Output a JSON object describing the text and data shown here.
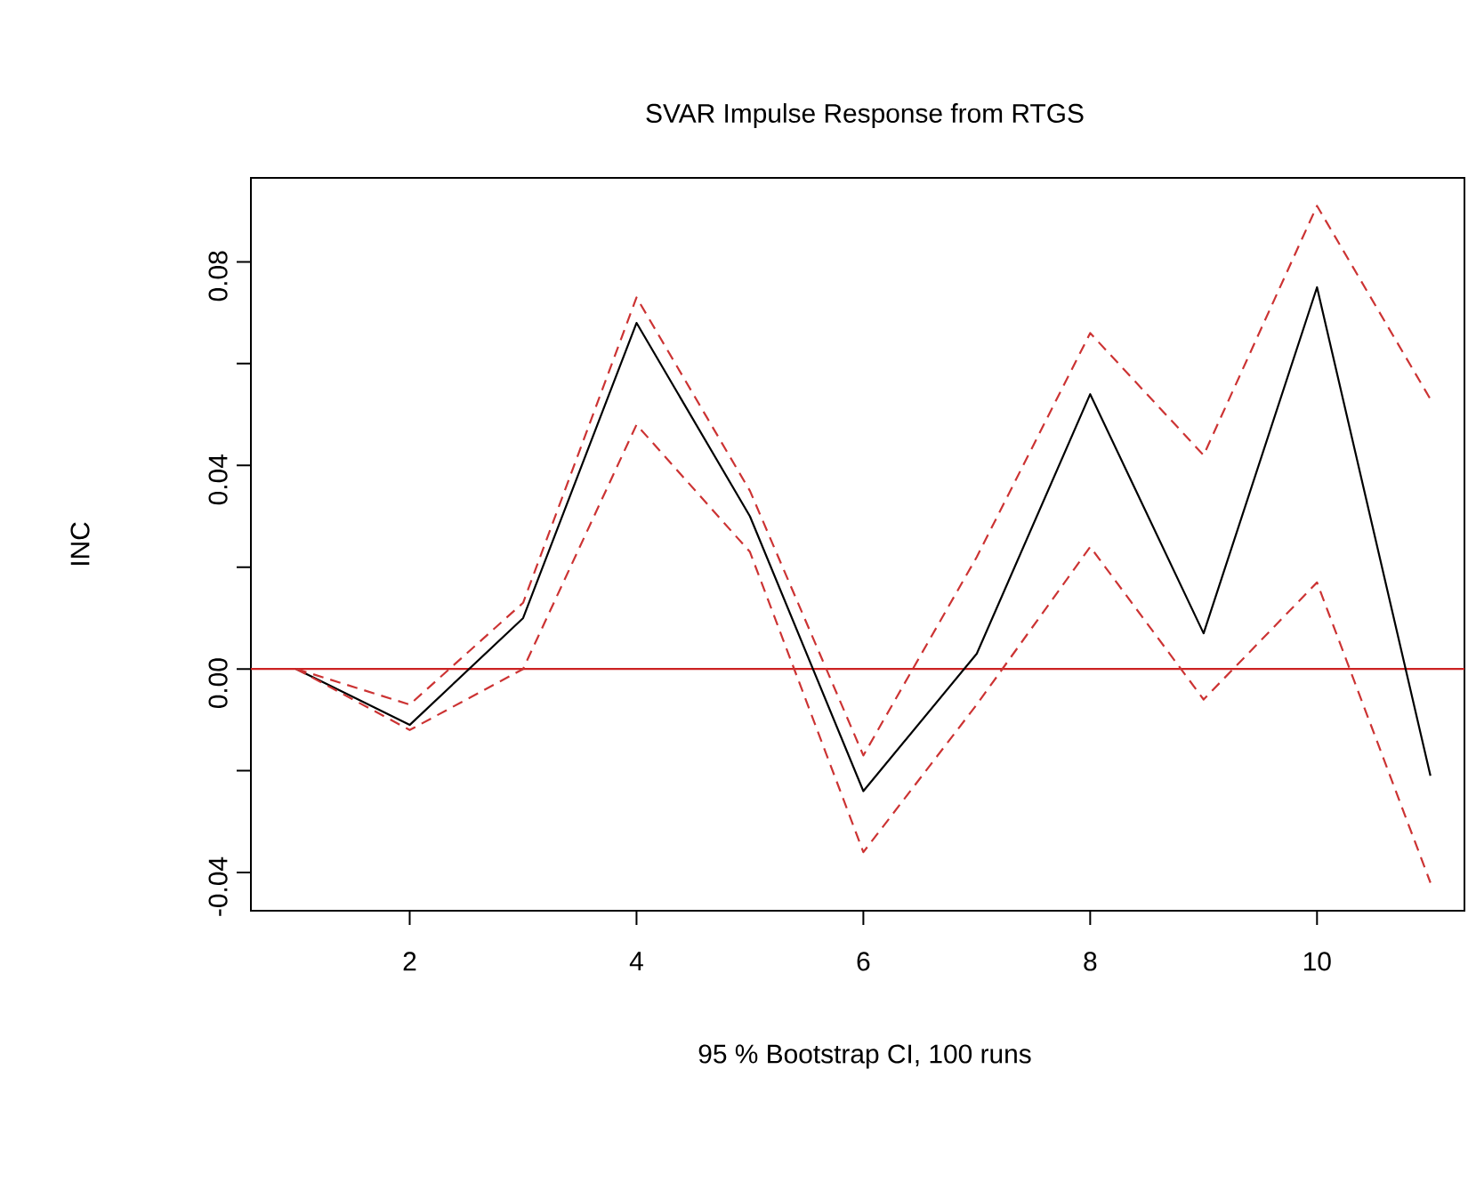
{
  "chart_data": {
    "type": "line",
    "title": "SVAR Impulse Response from RTGS",
    "xlabel": "95 % Bootstrap CI,  100 runs",
    "ylabel": "INC",
    "x": [
      1,
      2,
      3,
      4,
      5,
      6,
      7,
      8,
      9,
      10,
      11
    ],
    "series": [
      {
        "color": "#000000",
        "line_style": "solid",
        "values": [
          0,
          -0.011,
          0.01,
          0.068,
          0.03,
          -0.024,
          0.003,
          0.054,
          0.007,
          0.075,
          -0.021
        ]
      },
      {
        "color": "#cc3333",
        "line_style": "dashed",
        "values": [
          0,
          -0.007,
          0.013,
          0.073,
          0.035,
          -0.017,
          0.022,
          0.066,
          0.042,
          0.091,
          0.053
        ]
      },
      {
        "color": "#cc3333",
        "line_style": "dashed",
        "values": [
          0,
          -0.012,
          0.0,
          0.048,
          0.023,
          -0.036,
          -0.007,
          0.024,
          -0.006,
          0.017,
          -0.042
        ]
      }
    ],
    "xlim": [
      0.6,
      11.3
    ],
    "ylim": [
      -0.0475,
      0.0965
    ],
    "xticks": [
      2,
      4,
      6,
      8,
      10
    ],
    "yticks": [
      -0.04,
      {
        "value": -0.02,
        "label": null
      },
      {
        "value": 0,
        "label": "0.00"
      },
      {
        "value": 0.02,
        "label": null
      },
      0.04,
      {
        "value": 0.06,
        "label": null
      },
      0.08
    ],
    "ref_lines": [
      {
        "axis": "y",
        "value": 0,
        "color": "#cc2222"
      }
    ]
  }
}
